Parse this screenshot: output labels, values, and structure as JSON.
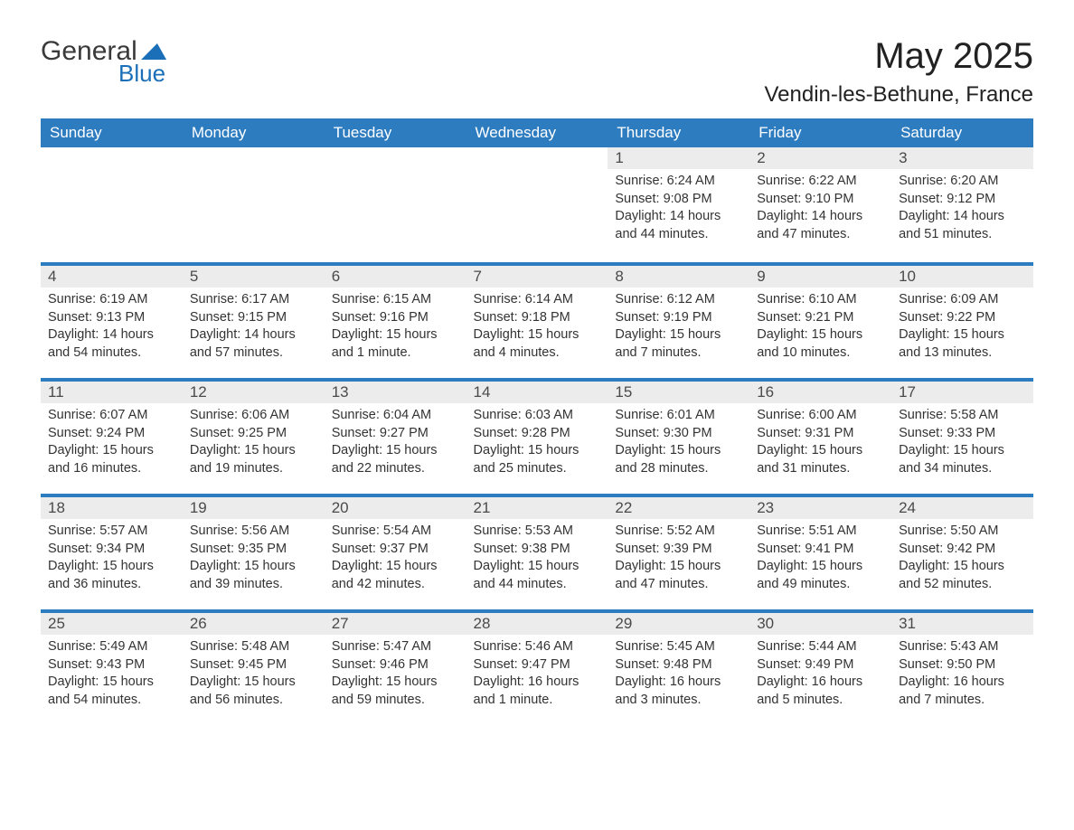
{
  "logo": {
    "text1": "General",
    "text2": "Blue"
  },
  "title": "May 2025",
  "location": "Vendin-les-Bethune, France",
  "colors": {
    "header_bg": "#2d7cc0",
    "header_text": "#ffffff",
    "daynum_bg": "#ececec",
    "daynum_text": "#4a4a4a",
    "row_border": "#2d7cc0",
    "body_text": "#333333",
    "logo_gray": "#3a3a3a",
    "logo_blue": "#1a6fb8",
    "background": "#ffffff"
  },
  "typography": {
    "title_fontsize": 40,
    "location_fontsize": 24,
    "weekday_fontsize": 17,
    "daynum_fontsize": 17,
    "info_fontsize": 14.5
  },
  "layout": {
    "columns": 7,
    "rows": 5,
    "start_day_index": 4
  },
  "weekdays": [
    "Sunday",
    "Monday",
    "Tuesday",
    "Wednesday",
    "Thursday",
    "Friday",
    "Saturday"
  ],
  "days": [
    {
      "n": 1,
      "sunrise": "6:24 AM",
      "sunset": "9:08 PM",
      "daylight": "14 hours and 44 minutes."
    },
    {
      "n": 2,
      "sunrise": "6:22 AM",
      "sunset": "9:10 PM",
      "daylight": "14 hours and 47 minutes."
    },
    {
      "n": 3,
      "sunrise": "6:20 AM",
      "sunset": "9:12 PM",
      "daylight": "14 hours and 51 minutes."
    },
    {
      "n": 4,
      "sunrise": "6:19 AM",
      "sunset": "9:13 PM",
      "daylight": "14 hours and 54 minutes."
    },
    {
      "n": 5,
      "sunrise": "6:17 AM",
      "sunset": "9:15 PM",
      "daylight": "14 hours and 57 minutes."
    },
    {
      "n": 6,
      "sunrise": "6:15 AM",
      "sunset": "9:16 PM",
      "daylight": "15 hours and 1 minute."
    },
    {
      "n": 7,
      "sunrise": "6:14 AM",
      "sunset": "9:18 PM",
      "daylight": "15 hours and 4 minutes."
    },
    {
      "n": 8,
      "sunrise": "6:12 AM",
      "sunset": "9:19 PM",
      "daylight": "15 hours and 7 minutes."
    },
    {
      "n": 9,
      "sunrise": "6:10 AM",
      "sunset": "9:21 PM",
      "daylight": "15 hours and 10 minutes."
    },
    {
      "n": 10,
      "sunrise": "6:09 AM",
      "sunset": "9:22 PM",
      "daylight": "15 hours and 13 minutes."
    },
    {
      "n": 11,
      "sunrise": "6:07 AM",
      "sunset": "9:24 PM",
      "daylight": "15 hours and 16 minutes."
    },
    {
      "n": 12,
      "sunrise": "6:06 AM",
      "sunset": "9:25 PM",
      "daylight": "15 hours and 19 minutes."
    },
    {
      "n": 13,
      "sunrise": "6:04 AM",
      "sunset": "9:27 PM",
      "daylight": "15 hours and 22 minutes."
    },
    {
      "n": 14,
      "sunrise": "6:03 AM",
      "sunset": "9:28 PM",
      "daylight": "15 hours and 25 minutes."
    },
    {
      "n": 15,
      "sunrise": "6:01 AM",
      "sunset": "9:30 PM",
      "daylight": "15 hours and 28 minutes."
    },
    {
      "n": 16,
      "sunrise": "6:00 AM",
      "sunset": "9:31 PM",
      "daylight": "15 hours and 31 minutes."
    },
    {
      "n": 17,
      "sunrise": "5:58 AM",
      "sunset": "9:33 PM",
      "daylight": "15 hours and 34 minutes."
    },
    {
      "n": 18,
      "sunrise": "5:57 AM",
      "sunset": "9:34 PM",
      "daylight": "15 hours and 36 minutes."
    },
    {
      "n": 19,
      "sunrise": "5:56 AM",
      "sunset": "9:35 PM",
      "daylight": "15 hours and 39 minutes."
    },
    {
      "n": 20,
      "sunrise": "5:54 AM",
      "sunset": "9:37 PM",
      "daylight": "15 hours and 42 minutes."
    },
    {
      "n": 21,
      "sunrise": "5:53 AM",
      "sunset": "9:38 PM",
      "daylight": "15 hours and 44 minutes."
    },
    {
      "n": 22,
      "sunrise": "5:52 AM",
      "sunset": "9:39 PM",
      "daylight": "15 hours and 47 minutes."
    },
    {
      "n": 23,
      "sunrise": "5:51 AM",
      "sunset": "9:41 PM",
      "daylight": "15 hours and 49 minutes."
    },
    {
      "n": 24,
      "sunrise": "5:50 AM",
      "sunset": "9:42 PM",
      "daylight": "15 hours and 52 minutes."
    },
    {
      "n": 25,
      "sunrise": "5:49 AM",
      "sunset": "9:43 PM",
      "daylight": "15 hours and 54 minutes."
    },
    {
      "n": 26,
      "sunrise": "5:48 AM",
      "sunset": "9:45 PM",
      "daylight": "15 hours and 56 minutes."
    },
    {
      "n": 27,
      "sunrise": "5:47 AM",
      "sunset": "9:46 PM",
      "daylight": "15 hours and 59 minutes."
    },
    {
      "n": 28,
      "sunrise": "5:46 AM",
      "sunset": "9:47 PM",
      "daylight": "16 hours and 1 minute."
    },
    {
      "n": 29,
      "sunrise": "5:45 AM",
      "sunset": "9:48 PM",
      "daylight": "16 hours and 3 minutes."
    },
    {
      "n": 30,
      "sunrise": "5:44 AM",
      "sunset": "9:49 PM",
      "daylight": "16 hours and 5 minutes."
    },
    {
      "n": 31,
      "sunrise": "5:43 AM",
      "sunset": "9:50 PM",
      "daylight": "16 hours and 7 minutes."
    }
  ],
  "labels": {
    "sunrise": "Sunrise:",
    "sunset": "Sunset:",
    "daylight": "Daylight:"
  }
}
